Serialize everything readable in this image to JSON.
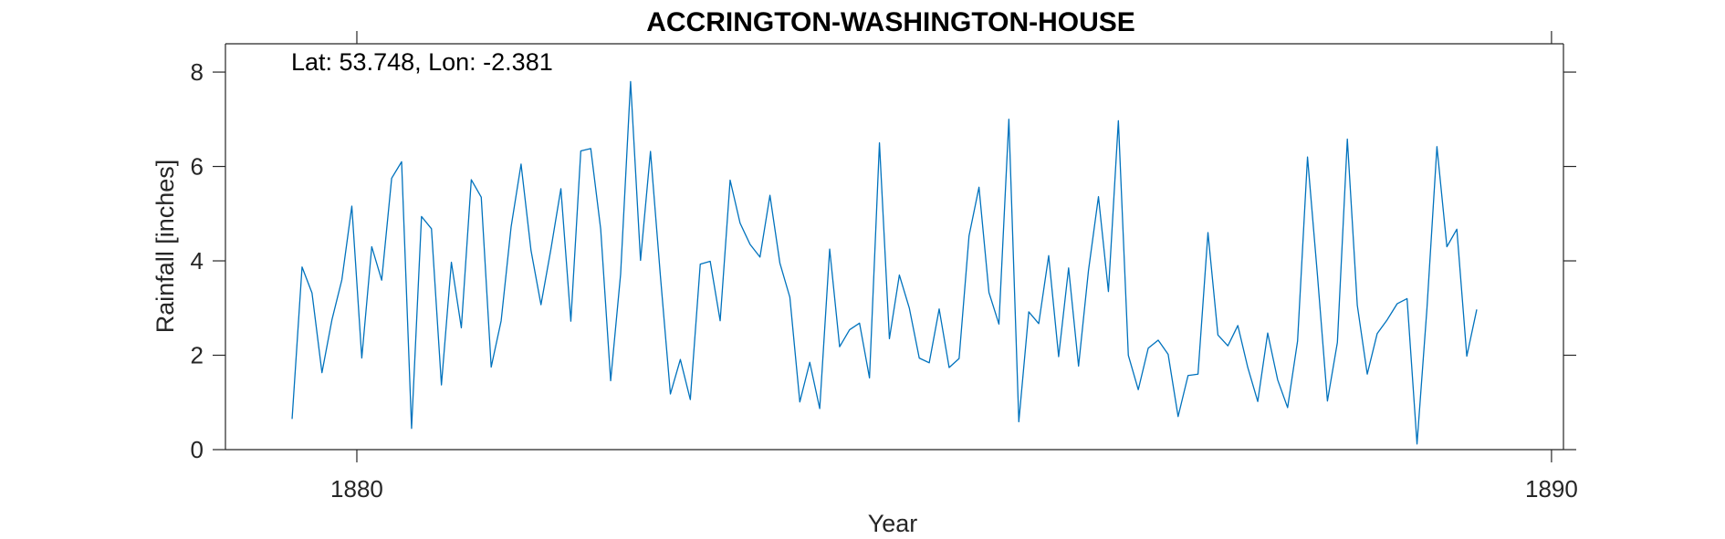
{
  "chart_data": {
    "type": "line",
    "title": "ACCRINGTON-WASHINGTON-HOUSE",
    "xlabel": "Year",
    "ylabel": "Rainfall [inches]",
    "annotation": "Lat: 53.748, Lon: -2.381",
    "xlim": [
      1878.9,
      1890.1
    ],
    "ylim": [
      0,
      8.6
    ],
    "xticks": [
      {
        "value": 1880,
        "label": "1880"
      },
      {
        "value": 1890,
        "label": "1890"
      }
    ],
    "yticks": [
      {
        "value": 0,
        "label": "0"
      },
      {
        "value": 2,
        "label": "2"
      },
      {
        "value": 4,
        "label": "4"
      },
      {
        "value": 6,
        "label": "6"
      },
      {
        "value": 8,
        "label": "8"
      }
    ],
    "grid": false,
    "series": [
      {
        "color": "#0072BD",
        "x_start": 1879.458,
        "x_step": 0.08333,
        "values": [
          0.65,
          3.87,
          3.32,
          1.63,
          2.75,
          3.6,
          5.16,
          1.94,
          4.3,
          3.59,
          5.75,
          6.1,
          0.45,
          4.94,
          4.68,
          1.37,
          3.97,
          2.58,
          5.72,
          5.35,
          1.75,
          2.73,
          4.72,
          6.05,
          4.22,
          3.07,
          4.25,
          5.53,
          2.72,
          6.33,
          6.38,
          4.67,
          1.46,
          3.72,
          7.8,
          4.01,
          6.32,
          3.67,
          1.18,
          1.91,
          1.06,
          3.93,
          3.99,
          2.73,
          5.71,
          4.8,
          4.35,
          4.08,
          5.39,
          3.95,
          3.23,
          1.01,
          1.85,
          0.87,
          4.25,
          2.18,
          2.54,
          2.68,
          1.52,
          6.5,
          2.35,
          3.7,
          3.0,
          1.94,
          1.84,
          2.98,
          1.74,
          1.93,
          4.53,
          5.56,
          3.33,
          2.66,
          7.0,
          0.59,
          2.92,
          2.67,
          4.11,
          1.97,
          3.85,
          1.77,
          3.8,
          5.36,
          3.35,
          6.97,
          2.0,
          1.27,
          2.15,
          2.32,
          2.02,
          0.7,
          1.57,
          1.6,
          4.6,
          2.43,
          2.2,
          2.63,
          1.74,
          1.02,
          2.47,
          1.48,
          0.89,
          2.3,
          6.2,
          3.69,
          1.03,
          2.27,
          6.58,
          3.06,
          1.6,
          2.46,
          2.75,
          3.09,
          3.2,
          0.12,
          3.0,
          6.42,
          4.3,
          4.67,
          1.98,
          2.97
        ]
      }
    ]
  }
}
